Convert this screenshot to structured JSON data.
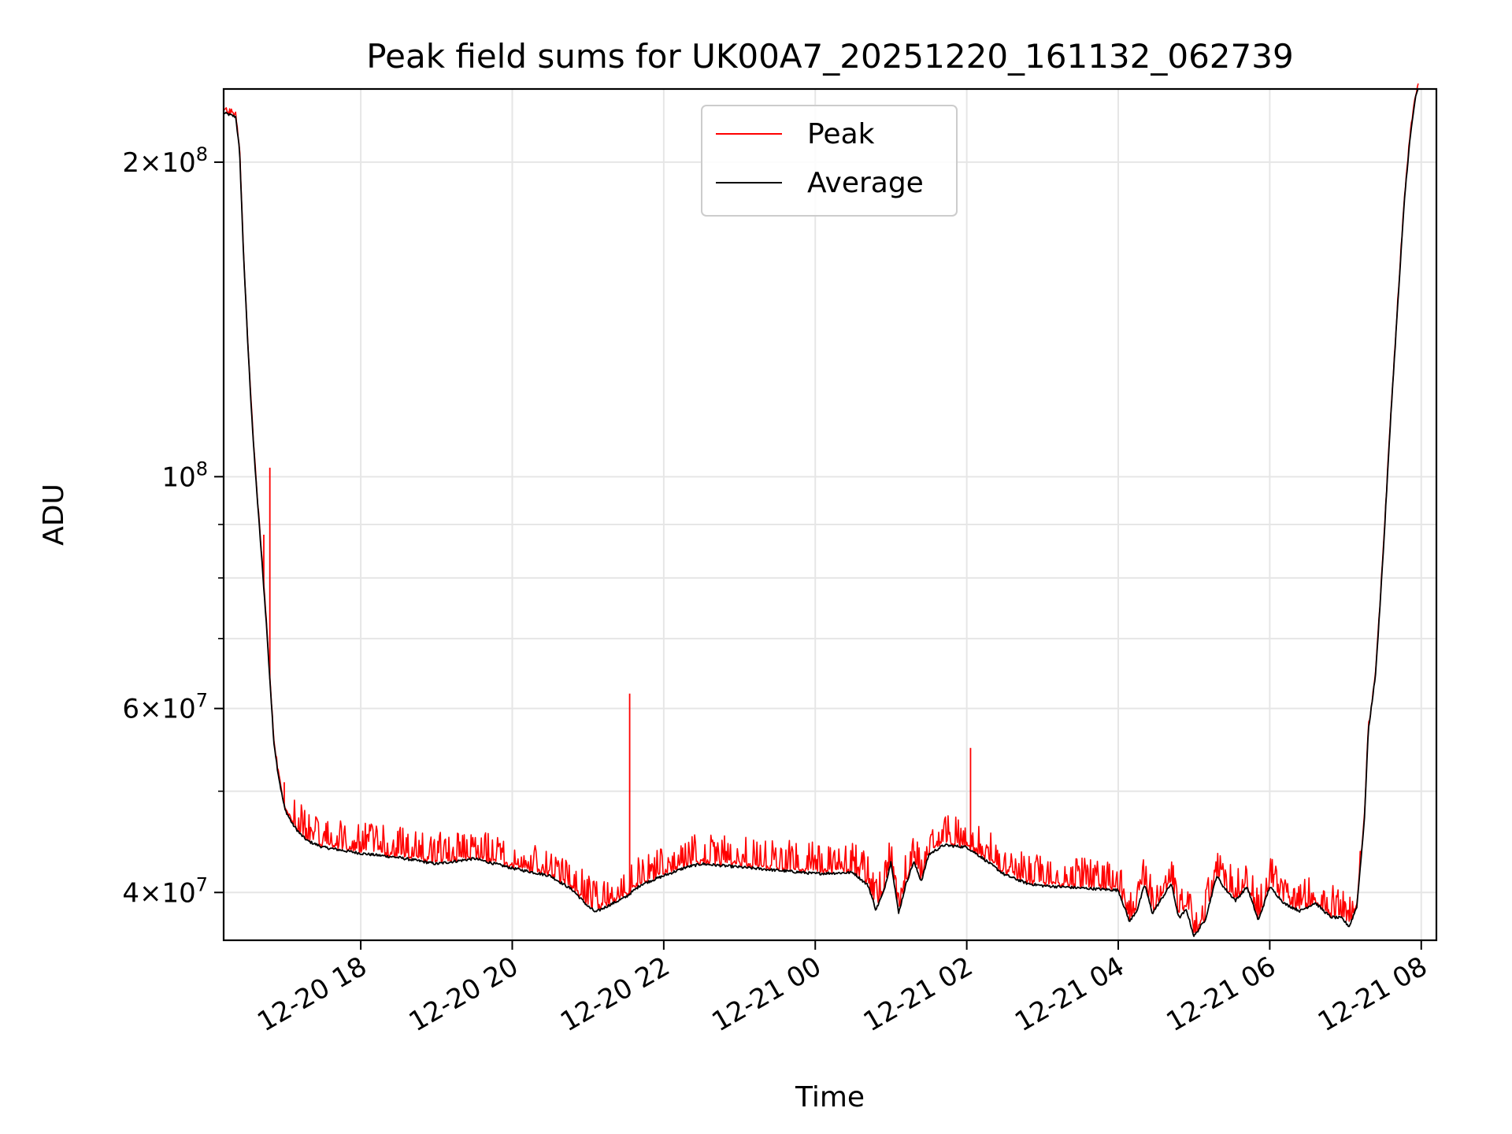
{
  "chart_data": {
    "type": "line",
    "title": "Peak field sums for UK00A7_20251220_161132_062739",
    "xlabel": "Time",
    "ylabel": "ADU",
    "yscale": "log",
    "ylim": [
      36000000,
      235000000
    ],
    "xlim_hours": [
      16.19,
      32.2
    ],
    "x_unit": "hours since 2025-12-20 00:00",
    "grid": true,
    "legend_position": "upper center",
    "x_ticks": [
      {
        "value": 18,
        "label": "12-20 18"
      },
      {
        "value": 20,
        "label": "12-20 20"
      },
      {
        "value": 22,
        "label": "12-20 22"
      },
      {
        "value": 24,
        "label": "12-21 00"
      },
      {
        "value": 26,
        "label": "12-21 02"
      },
      {
        "value": 28,
        "label": "12-21 04"
      },
      {
        "value": 30,
        "label": "12-21 06"
      },
      {
        "value": 32,
        "label": "12-21 08"
      }
    ],
    "y_major_ticks": [
      {
        "value": 40000000,
        "mant": "4",
        "exp": "7"
      },
      {
        "value": 60000000,
        "mant": "6",
        "exp": "7"
      },
      {
        "value": 100000000,
        "mant": "",
        "exp": "8"
      },
      {
        "value": 200000000,
        "mant": "2",
        "exp": "8"
      }
    ],
    "y_minor_ticks": [
      50000000,
      70000000,
      80000000,
      90000000
    ],
    "series": [
      {
        "name": "Peak",
        "color": "#ff0000",
        "spikes": [
          {
            "x": 16.55,
            "y": 118000000
          },
          {
            "x": 16.72,
            "y": 88000000
          },
          {
            "x": 16.8,
            "y": 102000000
          },
          {
            "x": 16.99,
            "y": 51000000
          },
          {
            "x": 21.55,
            "y": 62000000
          },
          {
            "x": 26.05,
            "y": 55000000
          }
        ]
      },
      {
        "name": "Average",
        "color": "#000000",
        "points": [
          [
            16.19,
            223000000
          ],
          [
            16.35,
            221000000
          ],
          [
            16.4,
            205000000
          ],
          [
            16.45,
            165000000
          ],
          [
            16.5,
            138000000
          ],
          [
            16.55,
            118000000
          ],
          [
            16.6,
            103000000
          ],
          [
            16.65,
            92000000
          ],
          [
            16.7,
            82000000
          ],
          [
            16.75,
            73000000
          ],
          [
            16.8,
            64000000
          ],
          [
            16.85,
            56000000
          ],
          [
            16.9,
            52500000
          ],
          [
            16.95,
            50000000
          ],
          [
            17.0,
            48000000
          ],
          [
            17.1,
            46500000
          ],
          [
            17.2,
            45500000
          ],
          [
            17.3,
            44800000
          ],
          [
            17.5,
            44200000
          ],
          [
            18.0,
            43600000
          ],
          [
            18.5,
            43200000
          ],
          [
            19.0,
            42600000
          ],
          [
            19.5,
            43100000
          ],
          [
            20.0,
            42200000
          ],
          [
            20.5,
            41500000
          ],
          [
            20.8,
            40200000
          ],
          [
            21.0,
            38800000
          ],
          [
            21.1,
            38300000
          ],
          [
            21.25,
            38800000
          ],
          [
            21.5,
            39600000
          ],
          [
            21.7,
            40700000
          ],
          [
            22.0,
            41500000
          ],
          [
            22.3,
            42300000
          ],
          [
            22.5,
            42600000
          ],
          [
            23.0,
            42300000
          ],
          [
            23.5,
            42000000
          ],
          [
            24.0,
            41700000
          ],
          [
            24.5,
            41800000
          ],
          [
            24.7,
            40600000
          ],
          [
            24.8,
            38500000
          ],
          [
            24.9,
            40000000
          ],
          [
            25.0,
            42800000
          ],
          [
            25.05,
            40500000
          ],
          [
            25.1,
            38200000
          ],
          [
            25.2,
            40800000
          ],
          [
            25.3,
            42800000
          ],
          [
            25.4,
            41000000
          ],
          [
            25.5,
            43500000
          ],
          [
            25.7,
            44400000
          ],
          [
            26.0,
            44200000
          ],
          [
            26.2,
            43200000
          ],
          [
            26.5,
            41600000
          ],
          [
            26.8,
            40800000
          ],
          [
            27.0,
            40600000
          ],
          [
            27.5,
            40400000
          ],
          [
            28.0,
            40200000
          ],
          [
            28.15,
            37500000
          ],
          [
            28.25,
            38500000
          ],
          [
            28.35,
            40700000
          ],
          [
            28.45,
            38200000
          ],
          [
            28.55,
            39200000
          ],
          [
            28.7,
            40800000
          ],
          [
            28.8,
            37800000
          ],
          [
            28.9,
            38500000
          ],
          [
            29.0,
            36300000
          ],
          [
            29.15,
            37700000
          ],
          [
            29.3,
            41500000
          ],
          [
            29.4,
            40400000
          ],
          [
            29.55,
            39300000
          ],
          [
            29.7,
            40500000
          ],
          [
            29.85,
            37600000
          ],
          [
            30.0,
            40500000
          ],
          [
            30.2,
            39000000
          ],
          [
            30.4,
            38400000
          ],
          [
            30.6,
            39100000
          ],
          [
            30.8,
            37900000
          ],
          [
            30.95,
            37800000
          ],
          [
            31.05,
            37100000
          ],
          [
            31.15,
            38800000
          ],
          [
            31.25,
            47000000
          ],
          [
            31.3,
            57000000
          ],
          [
            31.4,
            65000000
          ],
          [
            31.5,
            85000000
          ],
          [
            31.6,
            115000000
          ],
          [
            31.7,
            150000000
          ],
          [
            31.78,
            185000000
          ],
          [
            31.85,
            210000000
          ],
          [
            31.92,
            230000000
          ],
          [
            31.96,
            235000000
          ]
        ]
      }
    ],
    "legend": [
      {
        "label": "Peak",
        "color": "#ff0000"
      },
      {
        "label": "Average",
        "color": "#000000"
      }
    ]
  }
}
